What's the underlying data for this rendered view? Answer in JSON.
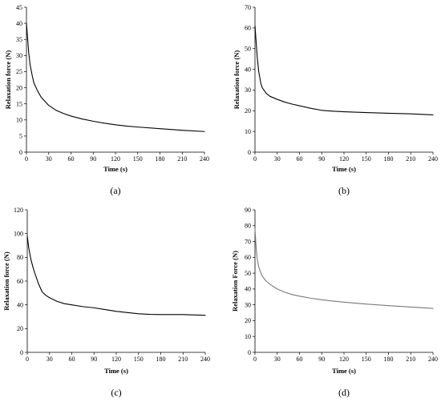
{
  "chart_data": [
    {
      "type": "line",
      "caption": "(a)",
      "xlabel": "Time (s)",
      "ylabel": "Relaxation force (N)",
      "xlim": [
        0,
        240
      ],
      "ylim": [
        0,
        45
      ],
      "xticks": [
        0,
        30,
        60,
        90,
        120,
        150,
        180,
        210,
        240
      ],
      "yticks": [
        0,
        5,
        10,
        15,
        20,
        25,
        30,
        35,
        40,
        45
      ],
      "grid": false,
      "line_color": "#000000",
      "series": [
        {
          "x": [
            0,
            1,
            2,
            3,
            5,
            8,
            10,
            15,
            20,
            30,
            40,
            50,
            60,
            75,
            90,
            105,
            120,
            135,
            150,
            180,
            210,
            240
          ],
          "y": [
            40,
            37,
            34,
            31,
            27,
            23.5,
            21.5,
            19,
            17,
            14.5,
            13,
            12,
            11.2,
            10.3,
            9.6,
            9.0,
            8.5,
            8.1,
            7.8,
            7.3,
            6.8,
            6.4
          ]
        }
      ]
    },
    {
      "type": "line",
      "caption": "(b)",
      "xlabel": "Time (s)",
      "ylabel": "Relaxation force (N)",
      "xlim": [
        0,
        240
      ],
      "ylim": [
        0,
        70
      ],
      "xticks": [
        0,
        30,
        60,
        90,
        120,
        150,
        180,
        210,
        240
      ],
      "yticks": [
        0,
        10,
        20,
        30,
        40,
        50,
        60,
        70
      ],
      "grid": false,
      "line_color": "#000000",
      "series": [
        {
          "x": [
            0,
            1,
            2,
            3,
            5,
            8,
            10,
            15,
            20,
            30,
            40,
            50,
            60,
            75,
            90,
            105,
            120,
            150,
            180,
            210,
            240
          ],
          "y": [
            61,
            56,
            51,
            46,
            39,
            33,
            31,
            28.5,
            27,
            25.5,
            24.2,
            23.2,
            22.4,
            21.2,
            20.2,
            19.8,
            19.5,
            19.1,
            18.8,
            18.5,
            18.0
          ]
        }
      ]
    },
    {
      "type": "line",
      "caption": "(c)",
      "xlabel": "Time (s)",
      "ylabel": "Relaxation force (N)",
      "xlim": [
        0,
        240
      ],
      "ylim": [
        0,
        120
      ],
      "xticks": [
        0,
        30,
        60,
        90,
        120,
        150,
        180,
        210,
        240
      ],
      "yticks": [
        0,
        20,
        40,
        60,
        80,
        100,
        120
      ],
      "grid": false,
      "line_color": "#000000",
      "series": [
        {
          "x": [
            0,
            2,
            5,
            8,
            10,
            15,
            20,
            25,
            30,
            40,
            50,
            60,
            75,
            90,
            105,
            120,
            135,
            150,
            165,
            180,
            210,
            240
          ],
          "y": [
            98,
            88,
            78,
            71,
            67,
            58,
            51,
            48,
            46,
            43,
            41,
            40,
            38.5,
            37.5,
            36,
            34.5,
            33.5,
            32.5,
            32,
            31.8,
            31.8,
            31.2
          ]
        }
      ]
    },
    {
      "type": "line",
      "caption": "(d)",
      "xlabel": "Time (s)",
      "ylabel": "Relaxation Force (N)",
      "xlim": [
        0,
        240
      ],
      "ylim": [
        0,
        90
      ],
      "xticks": [
        0,
        30,
        60,
        90,
        120,
        150,
        180,
        210,
        240
      ],
      "yticks": [
        0,
        10,
        20,
        30,
        40,
        50,
        60,
        70,
        80,
        90
      ],
      "grid": false,
      "line_color": "#7a7a7a",
      "series": [
        {
          "x": [
            0,
            1,
            2,
            3,
            5,
            8,
            10,
            15,
            20,
            30,
            40,
            50,
            60,
            75,
            90,
            105,
            120,
            150,
            180,
            210,
            240
          ],
          "y": [
            78,
            70,
            64,
            59,
            54,
            50,
            48,
            45,
            43,
            40,
            38,
            36.5,
            35.5,
            34.2,
            33.2,
            32.4,
            31.7,
            30.5,
            29.5,
            28.6,
            27.8
          ]
        }
      ]
    }
  ]
}
